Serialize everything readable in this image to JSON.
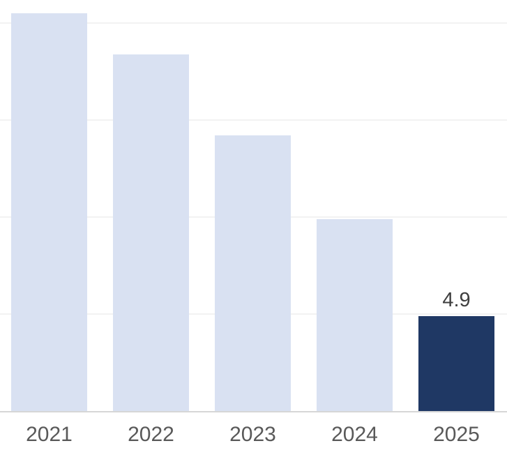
{
  "chart_data": {
    "type": "bar",
    "title": "",
    "xlabel": "",
    "ylabel": "",
    "categories": [
      "2021",
      "2022",
      "2023",
      "2024",
      "2025"
    ],
    "values": [
      20.5,
      18.4,
      14.2,
      9.9,
      4.9
    ],
    "data_labels": [
      "",
      "",
      "",
      "",
      "4.9"
    ],
    "highlight_index": 4,
    "ylim": [
      0,
      21.2
    ],
    "gridline_values": [
      5,
      10,
      15,
      20
    ],
    "grid": "horizontal-only",
    "legend": "none",
    "y_axis_labels_visible": false,
    "colors": {
      "background": "#FFFFFF",
      "bar_default": "#D9E1F2",
      "bar_highlight": "#1F3864",
      "gridline": "#F2F2F2",
      "axis_line": "#D6D6D6",
      "tick_label": "#595959",
      "data_label": "#3F3F3F"
    }
  }
}
